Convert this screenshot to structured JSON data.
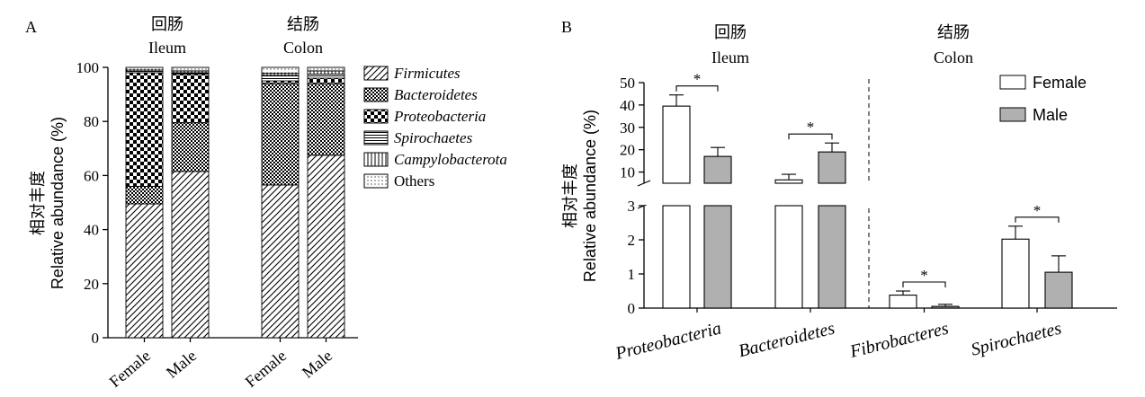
{
  "chart_data": [
    {
      "type": "bar",
      "stacked": true,
      "panel_label": "A",
      "ylabel_cn": "相对丰度",
      "ylabel": "Relative abundance (%)",
      "ylim": [
        0,
        100
      ],
      "yticks": [
        "0",
        "20",
        "40",
        "60",
        "80",
        "100"
      ],
      "groups": [
        {
          "title_cn": "回肠",
          "title_en": "Ileum"
        },
        {
          "title_cn": "结肠",
          "title_en": "Colon"
        }
      ],
      "categories": [
        "Female",
        "Male",
        "Female",
        "Male"
      ],
      "series": [
        {
          "name": "Firmicutes",
          "values": [
            49.5,
            61.5,
            56.5,
            67.5
          ]
        },
        {
          "name": "Bacteroidetes",
          "values": [
            6.5,
            18.0,
            37.5,
            26.5
          ]
        },
        {
          "name": "Proteobacteria",
          "values": [
            42.0,
            18.0,
            1.0,
            2.0
          ]
        },
        {
          "name": "Spirochaetes",
          "values": [
            0.5,
            0.5,
            2.0,
            1.5
          ]
        },
        {
          "name": "Campylobacterota",
          "values": [
            0.5,
            0.7,
            0.8,
            1.2
          ]
        },
        {
          "name": "Others",
          "values": [
            1.0,
            1.3,
            2.2,
            1.3
          ]
        }
      ]
    },
    {
      "type": "bar",
      "panel_label": "B",
      "ylabel_cn": "相对丰度",
      "ylabel": "Relative abundance (%)",
      "axis_break": [
        3,
        5
      ],
      "yticks_lower": [
        "0",
        "1",
        "2",
        "3"
      ],
      "yticks_upper": [
        "10",
        "20",
        "30",
        "40",
        "50"
      ],
      "groups": [
        {
          "title_cn": "回肠",
          "title_en": "Ileum"
        },
        {
          "title_cn": "结肠",
          "title_en": "Colon"
        }
      ],
      "categories": [
        "Proteobacteria",
        "Bacteroidetes",
        "Fibrobacteres",
        "Spirochaetes"
      ],
      "series": [
        {
          "name": "Female",
          "values": [
            39.5,
            6.5,
            0.38,
            2.02
          ],
          "errors": [
            5,
            2.5,
            0.12,
            0.38
          ]
        },
        {
          "name": "Male",
          "values": [
            17.0,
            19.0,
            0.05,
            1.05
          ],
          "errors": [
            4,
            4,
            0.06,
            0.48
          ]
        }
      ],
      "significance": [
        "*",
        "*",
        "*",
        "*"
      ],
      "colors": {
        "Female": "#ffffff",
        "Male": "#b0b0b0"
      }
    }
  ]
}
